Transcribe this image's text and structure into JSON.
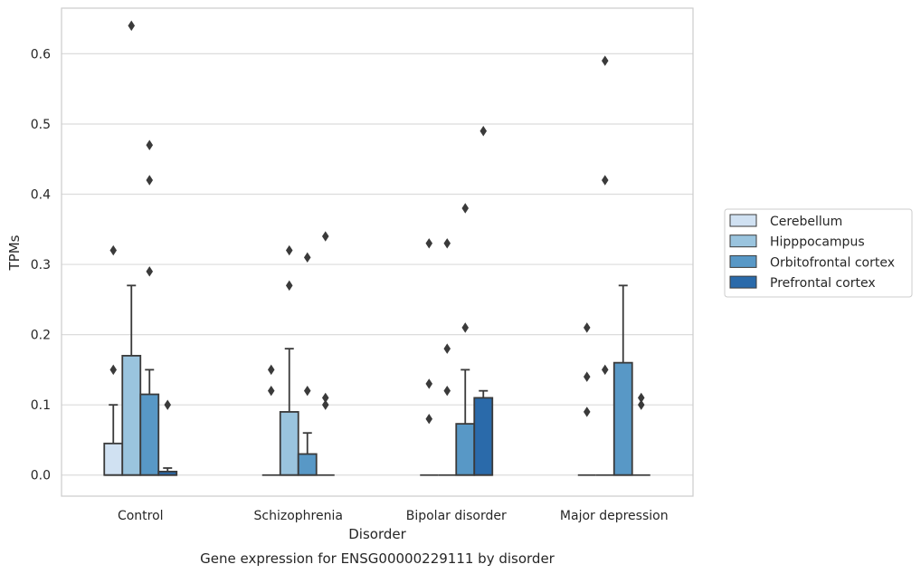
{
  "chart_data": {
    "type": "box",
    "xlabel": "Disorder",
    "ylabel": "TPMs",
    "caption": "Gene expression for ENSG00000229111 by disorder",
    "ylim": [
      -0.03,
      0.665
    ],
    "yticks": [
      "0.0",
      "0.1",
      "0.2",
      "0.3",
      "0.4",
      "0.5",
      "0.6"
    ],
    "grid": "horizontal",
    "legend_position": "center-right, outside plot",
    "categories": [
      "Control",
      "Schizophrenia",
      "Bipolar disorder",
      "Major depression"
    ],
    "series": [
      {
        "name": "Cerebellum",
        "color": "#d0e1f2",
        "boxes": [
          {
            "q1": 0.0,
            "median": 0.0,
            "q3": 0.045,
            "whisker_low": 0.0,
            "whisker_high": 0.1,
            "outliers": [
              0.15,
              0.32
            ]
          },
          {
            "q1": 0.0,
            "median": 0.0,
            "q3": 0.0,
            "whisker_low": 0.0,
            "whisker_high": 0.0,
            "outliers": [
              0.12,
              0.15
            ]
          },
          {
            "q1": 0.0,
            "median": 0.0,
            "q3": 0.0,
            "whisker_low": 0.0,
            "whisker_high": 0.0,
            "outliers": [
              0.08,
              0.13,
              0.33
            ]
          },
          {
            "q1": 0.0,
            "median": 0.0,
            "q3": 0.0,
            "whisker_low": 0.0,
            "whisker_high": 0.0,
            "outliers": [
              0.09,
              0.14,
              0.21
            ]
          }
        ]
      },
      {
        "name": "Hipppocampus",
        "color": "#9ac4de",
        "boxes": [
          {
            "q1": 0.0,
            "median": 0.0,
            "q3": 0.17,
            "whisker_low": 0.0,
            "whisker_high": 0.27,
            "outliers": [
              0.64
            ]
          },
          {
            "q1": 0.0,
            "median": 0.0,
            "q3": 0.09,
            "whisker_low": 0.0,
            "whisker_high": 0.18,
            "outliers": [
              0.27,
              0.32
            ]
          },
          {
            "q1": 0.0,
            "median": 0.0,
            "q3": 0.0,
            "whisker_low": 0.0,
            "whisker_high": 0.0,
            "outliers": [
              0.12,
              0.18,
              0.33
            ]
          },
          {
            "q1": 0.0,
            "median": 0.0,
            "q3": 0.0,
            "whisker_low": 0.0,
            "whisker_high": 0.0,
            "outliers": [
              0.15,
              0.42,
              0.59
            ]
          }
        ]
      },
      {
        "name": "Orbitofrontal cortex",
        "color": "#5898c6",
        "boxes": [
          {
            "q1": 0.0,
            "median": 0.0,
            "q3": 0.115,
            "whisker_low": 0.0,
            "whisker_high": 0.15,
            "outliers": [
              0.29,
              0.42,
              0.47
            ]
          },
          {
            "q1": 0.0,
            "median": 0.0,
            "q3": 0.03,
            "whisker_low": 0.0,
            "whisker_high": 0.06,
            "outliers": [
              0.12,
              0.31
            ]
          },
          {
            "q1": 0.0,
            "median": 0.0,
            "q3": 0.073,
            "whisker_low": 0.0,
            "whisker_high": 0.15,
            "outliers": [
              0.21,
              0.38
            ]
          },
          {
            "q1": 0.0,
            "median": 0.0,
            "q3": 0.16,
            "whisker_low": 0.0,
            "whisker_high": 0.27,
            "outliers": []
          }
        ]
      },
      {
        "name": "Prefrontal cortex",
        "color": "#2a6aaa",
        "boxes": [
          {
            "q1": 0.0,
            "median": 0.0,
            "q3": 0.005,
            "whisker_low": 0.0,
            "whisker_high": 0.01,
            "outliers": [
              0.1
            ]
          },
          {
            "q1": 0.0,
            "median": 0.0,
            "q3": 0.0,
            "whisker_low": 0.0,
            "whisker_high": 0.0,
            "outliers": [
              0.1,
              0.11,
              0.34
            ]
          },
          {
            "q1": 0.0,
            "median": 0.0,
            "q3": 0.11,
            "whisker_low": 0.0,
            "whisker_high": 0.12,
            "outliers": [
              0.49
            ]
          },
          {
            "q1": 0.0,
            "median": 0.0,
            "q3": 0.0,
            "whisker_low": 0.0,
            "whisker_high": 0.0,
            "outliers": [
              0.1,
              0.11
            ]
          }
        ]
      }
    ]
  }
}
